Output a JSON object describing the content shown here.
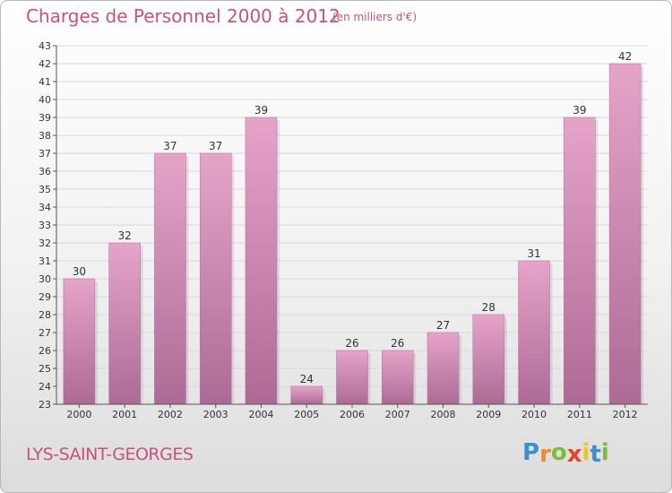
{
  "title": "Charges de Personnel 2000 à 2012",
  "subtitle": "(en milliers d'€)",
  "city": "LYS-SAINT-GEORGES",
  "logo": {
    "letters": [
      "P",
      "r",
      "o",
      "x",
      "i",
      "t",
      "i"
    ],
    "colors": [
      "#3a8fd0",
      "#f08a24",
      "#7cbd3a",
      "#e8412c",
      "#f4c31d",
      "#3a8fd0",
      "#7cbd3a"
    ]
  },
  "colors": {
    "bar": "#c8689c",
    "text": "#c8527e"
  },
  "chart_data": {
    "type": "bar",
    "title": "Charges de Personnel 2000 à 2012",
    "subtitle": "(en milliers d'€)",
    "categories": [
      "2000",
      "2001",
      "2002",
      "2003",
      "2004",
      "2005",
      "2006",
      "2007",
      "2008",
      "2009",
      "2010",
      "2011",
      "2012"
    ],
    "values": [
      30,
      32,
      37,
      37,
      39,
      24,
      26,
      26,
      27,
      28,
      31,
      39,
      42
    ],
    "ylim": [
      23,
      43
    ],
    "yticks": [
      23,
      24,
      25,
      26,
      27,
      28,
      29,
      30,
      31,
      32,
      33,
      34,
      35,
      36,
      37,
      38,
      39,
      40,
      41,
      42,
      43
    ],
    "grid": true
  }
}
